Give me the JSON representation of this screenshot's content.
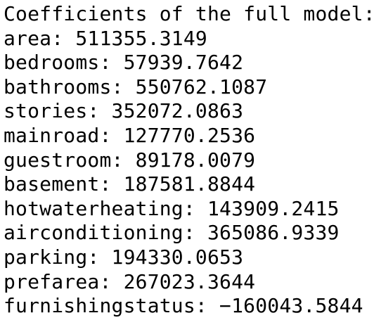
{
  "output": {
    "heading": "Coefficients of the full model:",
    "lines": [
      "area: 511355.3149",
      "bedrooms: 57939.7642",
      "bathrooms: 550762.1087",
      "stories: 352072.0863",
      "mainroad: 127770.2536",
      "guestroom: 89178.0079",
      "basement: 187581.8844",
      "hotwaterheating: 143909.2415",
      "airconditioning: 365086.9339",
      "parking: 194330.0653",
      "prefarea: 267023.3644",
      "furnishingstatus: −160043.5844"
    ]
  }
}
